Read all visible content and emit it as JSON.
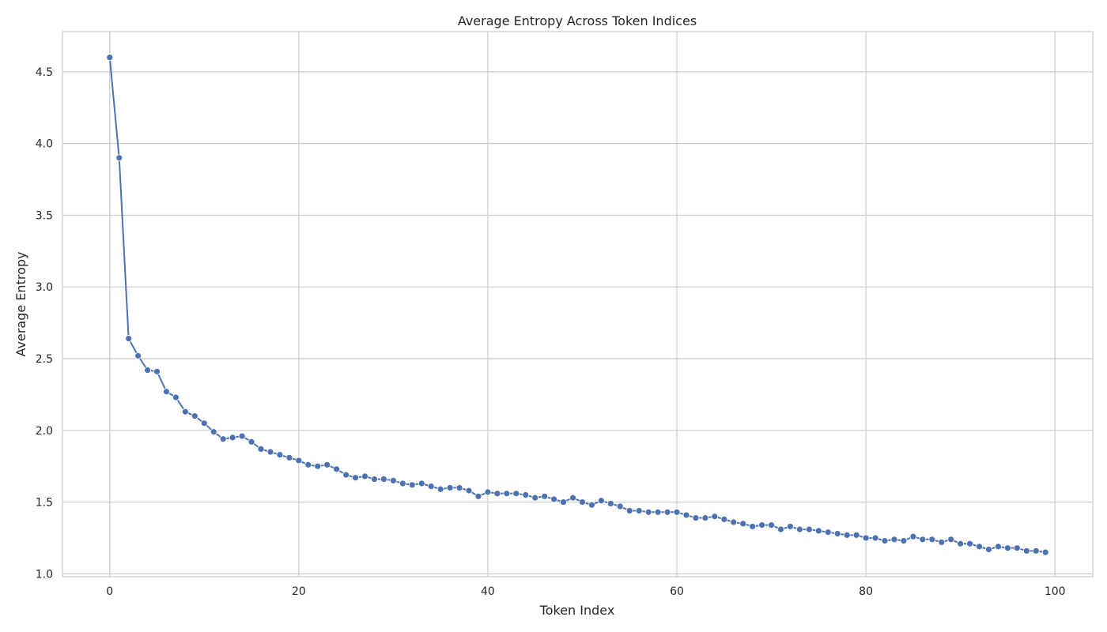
{
  "chart_data": {
    "type": "line",
    "title": "Average Entropy Across Token Indices",
    "xlabel": "Token Index",
    "ylabel": "Average Entropy",
    "xlim": [
      -5,
      104
    ],
    "ylim": [
      0.98,
      4.78
    ],
    "xticks": [
      0,
      20,
      40,
      60,
      80,
      100
    ],
    "yticks": [
      1.0,
      1.5,
      2.0,
      2.5,
      3.0,
      3.5,
      4.0,
      4.5
    ],
    "ytick_labels": [
      "1.0",
      "1.5",
      "2.0",
      "2.5",
      "3.0",
      "3.5",
      "4.0",
      "4.5"
    ],
    "grid": true,
    "legend": "none",
    "colors": {
      "line": "#4c72b0",
      "grid": "#cccccc",
      "text": "#262626"
    },
    "series": [
      {
        "x": [
          0,
          1,
          2,
          3,
          4,
          5,
          6,
          7,
          8,
          9,
          10,
          11,
          12,
          13,
          14,
          15,
          16,
          17,
          18,
          19,
          20,
          21,
          22,
          23,
          24,
          25,
          26,
          27,
          28,
          29,
          30,
          31,
          32,
          33,
          34,
          35,
          36,
          37,
          38,
          39,
          40,
          41,
          42,
          43,
          44,
          45,
          46,
          47,
          48,
          49,
          50,
          51,
          52,
          53,
          54,
          55,
          56,
          57,
          58,
          59,
          60,
          61,
          62,
          63,
          64,
          65,
          66,
          67,
          68,
          69,
          70,
          71,
          72,
          73,
          74,
          75,
          76,
          77,
          78,
          79,
          80,
          81,
          82,
          83,
          84,
          85,
          86,
          87,
          88,
          89,
          90,
          91,
          92,
          93,
          94,
          95,
          96,
          97,
          98,
          99
        ],
        "values": [
          4.6,
          3.9,
          2.64,
          2.52,
          2.42,
          2.41,
          2.27,
          2.23,
          2.13,
          2.1,
          2.05,
          1.99,
          1.94,
          1.95,
          1.96,
          1.92,
          1.87,
          1.85,
          1.83,
          1.81,
          1.79,
          1.76,
          1.75,
          1.76,
          1.73,
          1.69,
          1.67,
          1.68,
          1.66,
          1.66,
          1.65,
          1.63,
          1.62,
          1.63,
          1.61,
          1.59,
          1.6,
          1.6,
          1.58,
          1.54,
          1.57,
          1.56,
          1.56,
          1.56,
          1.55,
          1.53,
          1.54,
          1.52,
          1.5,
          1.53,
          1.5,
          1.48,
          1.51,
          1.49,
          1.47,
          1.44,
          1.44,
          1.43,
          1.43,
          1.43,
          1.43,
          1.41,
          1.39,
          1.39,
          1.4,
          1.38,
          1.36,
          1.35,
          1.33,
          1.34,
          1.34,
          1.31,
          1.33,
          1.31,
          1.31,
          1.3,
          1.29,
          1.28,
          1.27,
          1.27,
          1.25,
          1.25,
          1.23,
          1.24,
          1.23,
          1.26,
          1.24,
          1.24,
          1.22,
          1.24,
          1.21,
          1.21,
          1.19,
          1.17,
          1.19,
          1.18,
          1.18,
          1.16,
          1.16,
          1.15
        ]
      }
    ]
  }
}
